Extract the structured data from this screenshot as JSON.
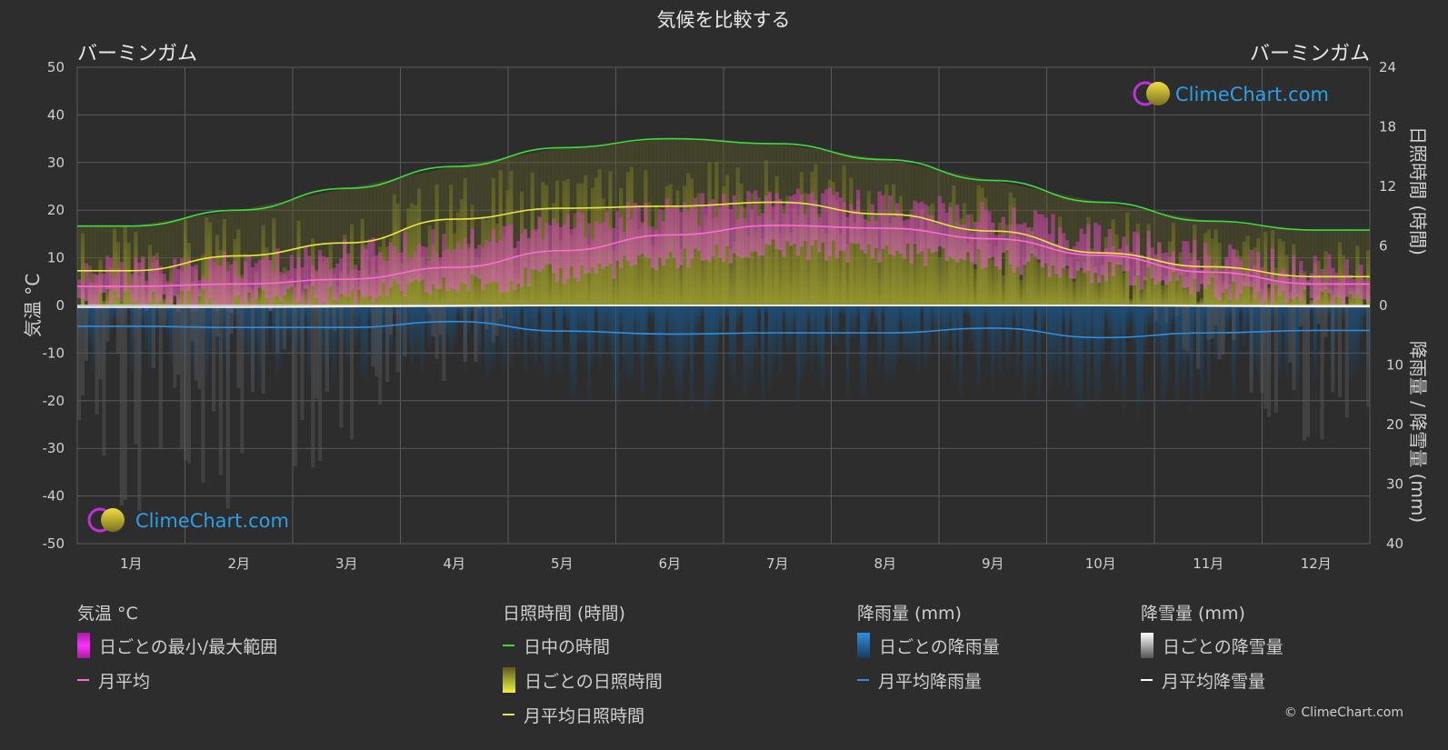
{
  "chart_data": {
    "type": "area",
    "title": "気候を比較する",
    "location_left": "バーミンガム",
    "location_right": "バーミンガム",
    "ylabel_left": "気温 °C",
    "ylabel_right_top": "日照時間 (時間)",
    "ylabel_right_bottom": "降雨量 / 降雪量 (mm)",
    "months": [
      "1月",
      "2月",
      "3月",
      "4月",
      "5月",
      "6月",
      "7月",
      "8月",
      "9月",
      "10月",
      "11月",
      "12月"
    ],
    "temp_axis": {
      "min": -50,
      "max": 50,
      "ticks": [
        "50",
        "40",
        "30",
        "20",
        "10",
        "0",
        "-10",
        "-20",
        "-30",
        "-40",
        "-50"
      ]
    },
    "sun_axis": {
      "min": 0,
      "max": 24,
      "ticks": [
        "24",
        "18",
        "12",
        "6",
        "0"
      ]
    },
    "precip_axis": {
      "min": 0,
      "max": 40,
      "ticks": [
        "0",
        "10",
        "20",
        "30",
        "40"
      ]
    },
    "grid": true,
    "series": [
      {
        "name": "日中の時間",
        "axis": "sun",
        "color": "#3ddc3d",
        "values": [
          8.0,
          9.6,
          11.8,
          14.0,
          15.9,
          16.8,
          16.3,
          14.7,
          12.6,
          10.4,
          8.5,
          7.6
        ]
      },
      {
        "name": "月平均日照時間",
        "axis": "sun",
        "color": "#e8e840",
        "values": [
          3.5,
          5.0,
          6.3,
          8.7,
          9.8,
          10.0,
          10.4,
          9.2,
          7.5,
          5.3,
          3.9,
          2.9
        ]
      },
      {
        "name": "月平均",
        "axis": "temp",
        "color": "#ff6ad5",
        "values": [
          4.0,
          4.5,
          5.5,
          8.0,
          11.5,
          14.8,
          16.8,
          16.2,
          14.0,
          10.5,
          7.0,
          4.5
        ]
      },
      {
        "name": "月平均降雨量",
        "axis": "precip",
        "color": "#2f8fdd",
        "values": [
          3.5,
          3.7,
          3.7,
          2.7,
          4.3,
          4.8,
          4.6,
          4.6,
          3.8,
          5.4,
          4.6,
          4.2
        ]
      },
      {
        "name": "月平均降雪量",
        "axis": "precip",
        "color": "#ffffff",
        "values": [
          0.3,
          0.3,
          0.2,
          0.1,
          0,
          0,
          0,
          0,
          0,
          0,
          0.1,
          0.2
        ]
      }
    ],
    "daily_temp_range": {
      "min": [
        1.0,
        1.0,
        2.0,
        4.0,
        6.5,
        9.5,
        11.5,
        11.3,
        9.5,
        7.0,
        3.7,
        1.8
      ],
      "max": [
        7.0,
        8.0,
        10.5,
        13.5,
        16.5,
        19.5,
        21.5,
        21.0,
        18.0,
        14.0,
        10.0,
        7.5
      ]
    }
  },
  "watermark_top": "ClimeChart.com",
  "watermark_bottom": "ClimeChart.com",
  "legend": [
    {
      "header": "気温 °C",
      "items": [
        {
          "type": "box",
          "label": "日ごとの最小/最大範囲",
          "color": "#e020e0"
        },
        {
          "type": "line",
          "label": "月平均",
          "color": "#ff6ad5"
        }
      ]
    },
    {
      "header": "日照時間 (時間)",
      "items": [
        {
          "type": "line",
          "label": "日中の時間",
          "color": "#3ddc3d"
        },
        {
          "type": "box",
          "label": "日ごとの日照時間",
          "color": "#d8d830"
        },
        {
          "type": "line",
          "label": "月平均日照時間",
          "color": "#e8e840"
        }
      ]
    },
    {
      "header": "降雨量 (mm)",
      "items": [
        {
          "type": "box",
          "label": "日ごとの降雨量",
          "color": "#2f8fdd"
        },
        {
          "type": "line",
          "label": "月平均降雨量",
          "color": "#2f8fdd"
        }
      ]
    },
    {
      "header": "降雪量 (mm)",
      "items": [
        {
          "type": "box",
          "label": "日ごとの降雪量",
          "color": "#dddddd"
        },
        {
          "type": "line",
          "label": "月平均降雪量",
          "color": "#ffffff"
        }
      ]
    }
  ],
  "copyright": "© ClimeChart.com"
}
